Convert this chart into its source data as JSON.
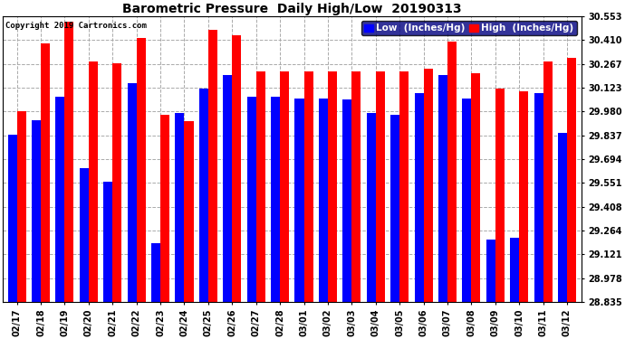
{
  "title": "Barometric Pressure  Daily High/Low  20190313",
  "copyright": "Copyright 2019 Cartronics.com",
  "legend_low": "Low  (Inches/Hg)",
  "legend_high": "High  (Inches/Hg)",
  "dates": [
    "02/17",
    "02/18",
    "02/19",
    "02/20",
    "02/21",
    "02/22",
    "02/23",
    "02/24",
    "02/25",
    "02/26",
    "02/27",
    "02/28",
    "03/01",
    "03/02",
    "03/03",
    "03/04",
    "03/05",
    "03/06",
    "03/07",
    "03/08",
    "03/09",
    "03/10",
    "03/11",
    "03/12"
  ],
  "low_values": [
    29.84,
    29.93,
    30.07,
    29.64,
    29.56,
    30.15,
    29.19,
    29.97,
    30.12,
    30.2,
    30.07,
    30.07,
    30.06,
    30.06,
    30.05,
    29.97,
    29.96,
    30.09,
    30.2,
    30.06,
    29.21,
    29.22,
    30.09,
    29.85
  ],
  "high_values": [
    29.98,
    30.39,
    30.52,
    30.28,
    30.27,
    30.42,
    29.96,
    29.92,
    30.47,
    30.44,
    30.22,
    30.22,
    30.22,
    30.22,
    30.22,
    30.22,
    30.22,
    30.24,
    30.4,
    30.21,
    30.12,
    30.1,
    30.28,
    30.3
  ],
  "ymin": 28.835,
  "ymax": 30.553,
  "yticks": [
    28.835,
    28.978,
    29.121,
    29.264,
    29.408,
    29.551,
    29.694,
    29.837,
    29.98,
    30.123,
    30.267,
    30.41,
    30.553
  ],
  "bar_width": 0.38,
  "low_color": "#0000ff",
  "high_color": "#ff0000",
  "bg_color": "#ffffff",
  "grid_color": "#aaaaaa",
  "title_fontsize": 10,
  "copyright_fontsize": 6.5,
  "tick_fontsize": 7,
  "legend_fontsize": 7.5
}
